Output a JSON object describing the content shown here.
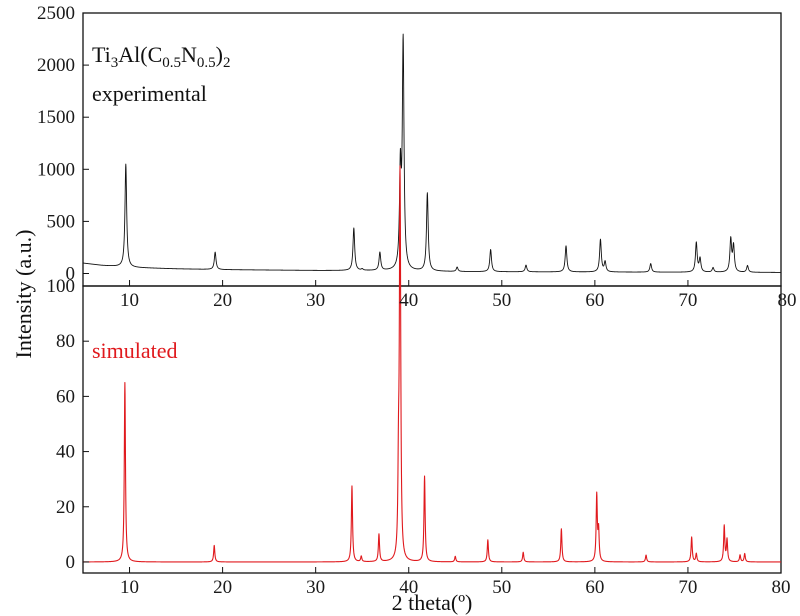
{
  "chart_data": [
    {
      "type": "line",
      "panel": "top",
      "title": "",
      "annotation": {
        "formula_parts": [
          {
            "text": "Ti",
            "sub": false
          },
          {
            "text": "3",
            "sub": true
          },
          {
            "text": "Al(C",
            "sub": false
          },
          {
            "text": "0.5",
            "sub": true
          },
          {
            "text": "N",
            "sub": false
          },
          {
            "text": "0.5",
            "sub": true
          },
          {
            "text": ")",
            "sub": false
          },
          {
            "text": "2",
            "sub": true
          }
        ],
        "label": "experimental",
        "color": "#111111"
      },
      "xlim": [
        5,
        80
      ],
      "ylim": [
        -120,
        2500
      ],
      "yticks": [
        0,
        500,
        1000,
        1500,
        2000,
        2500
      ],
      "tick_labels": [
        "0",
        "500",
        "1000",
        "1500",
        "2000",
        "2500"
      ],
      "xticks": [
        10,
        20,
        30,
        40,
        50,
        60,
        70,
        80
      ],
      "x_tick_labels": [
        "10",
        "20",
        "30",
        "40",
        "50",
        "60",
        "70",
        "80"
      ],
      "line_color": "#111111",
      "baseline": [
        {
          "x": 5,
          "y": 100
        },
        {
          "x": 7,
          "y": 78
        },
        {
          "x": 10,
          "y": 58
        },
        {
          "x": 15,
          "y": 45
        },
        {
          "x": 20,
          "y": 37
        },
        {
          "x": 30,
          "y": 29
        },
        {
          "x": 38,
          "y": 26
        },
        {
          "x": 45,
          "y": 18
        },
        {
          "x": 55,
          "y": 15
        },
        {
          "x": 65,
          "y": 13
        },
        {
          "x": 80,
          "y": 10
        }
      ],
      "peaks": [
        {
          "x": 9.6,
          "y": 1050
        },
        {
          "x": 19.2,
          "y": 205
        },
        {
          "x": 34.1,
          "y": 435
        },
        {
          "x": 35.0,
          "y": 40
        },
        {
          "x": 36.9,
          "y": 200
        },
        {
          "x": 39.1,
          "y": 950
        },
        {
          "x": 39.4,
          "y": 2190
        },
        {
          "x": 42.0,
          "y": 770
        },
        {
          "x": 45.2,
          "y": 60
        },
        {
          "x": 48.8,
          "y": 230
        },
        {
          "x": 52.6,
          "y": 80
        },
        {
          "x": 56.9,
          "y": 265
        },
        {
          "x": 60.6,
          "y": 325
        },
        {
          "x": 61.1,
          "y": 110
        },
        {
          "x": 66.0,
          "y": 95
        },
        {
          "x": 70.9,
          "y": 295
        },
        {
          "x": 71.3,
          "y": 140
        },
        {
          "x": 72.7,
          "y": 55
        },
        {
          "x": 74.6,
          "y": 325
        },
        {
          "x": 74.9,
          "y": 260
        },
        {
          "x": 76.4,
          "y": 75
        }
      ]
    },
    {
      "type": "line",
      "panel": "bottom",
      "title": "",
      "annotation": {
        "label": "simulated",
        "color": "#e0191d"
      },
      "xlim": [
        5,
        80
      ],
      "ylim": [
        -4,
        100
      ],
      "yticks": [
        0,
        20,
        40,
        60,
        80,
        100
      ],
      "tick_labels": [
        "0",
        "20",
        "40",
        "60",
        "80",
        "100"
      ],
      "xticks": [
        10,
        20,
        30,
        40,
        50,
        60,
        70,
        80
      ],
      "x_tick_labels": [
        "10",
        "20",
        "30",
        "40",
        "50",
        "60",
        "70",
        "80"
      ],
      "xlabel": "2 theta(º)",
      "line_color": "#e0191d",
      "baseline": [
        {
          "x": 5,
          "y": 0
        },
        {
          "x": 80,
          "y": 0
        }
      ],
      "peaks": [
        {
          "x": 9.5,
          "y": 65
        },
        {
          "x": 19.1,
          "y": 6
        },
        {
          "x": 33.9,
          "y": 27.5
        },
        {
          "x": 34.9,
          "y": 2
        },
        {
          "x": 36.8,
          "y": 10
        },
        {
          "x": 38.9,
          "y": 28
        },
        {
          "x": 39.1,
          "y": 52
        },
        {
          "x": 39.05,
          "y": 100
        },
        {
          "x": 41.7,
          "y": 31
        },
        {
          "x": 45.0,
          "y": 2
        },
        {
          "x": 48.5,
          "y": 8
        },
        {
          "x": 52.3,
          "y": 3.5
        },
        {
          "x": 56.4,
          "y": 12
        },
        {
          "x": 60.2,
          "y": 24
        },
        {
          "x": 60.4,
          "y": 11
        },
        {
          "x": 65.5,
          "y": 2.5
        },
        {
          "x": 70.4,
          "y": 9
        },
        {
          "x": 70.9,
          "y": 3
        },
        {
          "x": 73.9,
          "y": 13
        },
        {
          "x": 74.2,
          "y": 8
        },
        {
          "x": 75.6,
          "y": 2.5
        },
        {
          "x": 76.1,
          "y": 3
        }
      ]
    }
  ],
  "shared_ylabel": "Intensity (a.u.)"
}
